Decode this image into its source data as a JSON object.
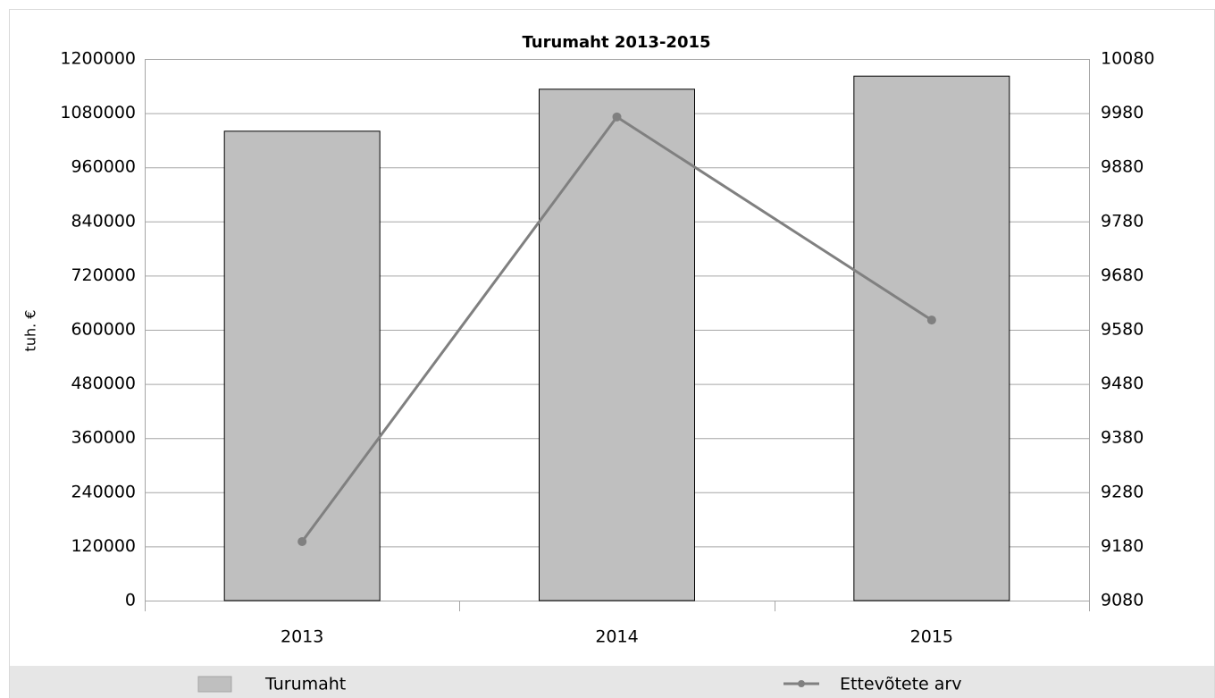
{
  "chart_data": {
    "type": "bar",
    "title": "Turumaht 2013-2015",
    "y_label": "tuh. €",
    "categories": [
      "2013",
      "2014",
      "2015"
    ],
    "series": [
      {
        "name": "Turumaht",
        "type": "bar",
        "color": "#bfbfbf",
        "values": [
          1040000,
          1133000,
          1162000
        ]
      },
      {
        "name": "Ettevõtete arv",
        "type": "line",
        "axis": "y2",
        "color": "#808080",
        "values": [
          9189,
          9973,
          9598
        ]
      }
    ],
    "ylim": [
      0,
      1200000
    ],
    "yticks": [
      0,
      120000,
      240000,
      360000,
      480000,
      600000,
      720000,
      840000,
      960000,
      1080000,
      1200000
    ],
    "y2lim": [
      9080,
      10080
    ],
    "y2ticks": [
      9080,
      9180,
      9280,
      9380,
      9480,
      9580,
      9680,
      9780,
      9880,
      9980,
      10080
    ],
    "grid": true,
    "legend": "bottom"
  }
}
